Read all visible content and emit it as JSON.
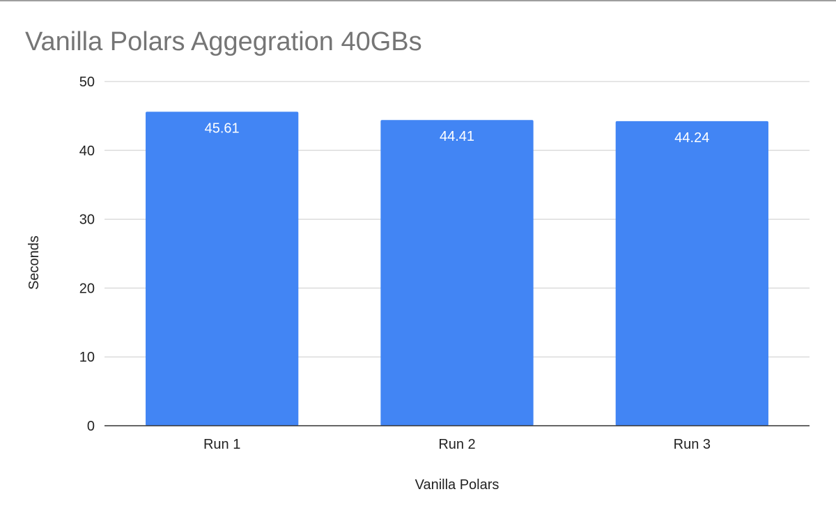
{
  "chart_data": {
    "type": "bar",
    "title": "Vanilla Polars Aggegration 40GBs",
    "xlabel": "Vanilla Polars",
    "ylabel": "Seconds",
    "categories": [
      "Run 1",
      "Run 2",
      "Run 3"
    ],
    "values": [
      45.61,
      44.41,
      44.24
    ],
    "data_labels": [
      "45.61",
      "44.41",
      "44.24"
    ],
    "ylim": [
      0,
      50
    ],
    "yticks": [
      0,
      10,
      20,
      30,
      40,
      50
    ],
    "ytick_labels": [
      "0",
      "10",
      "20",
      "30",
      "40",
      "50"
    ],
    "grid": true,
    "legend": "none",
    "bar_color": "#4285f4",
    "bar_label_color": "#ffffff",
    "title_color": "#757575",
    "gridline_color": "#cccccc",
    "axis_color": "#333333"
  }
}
